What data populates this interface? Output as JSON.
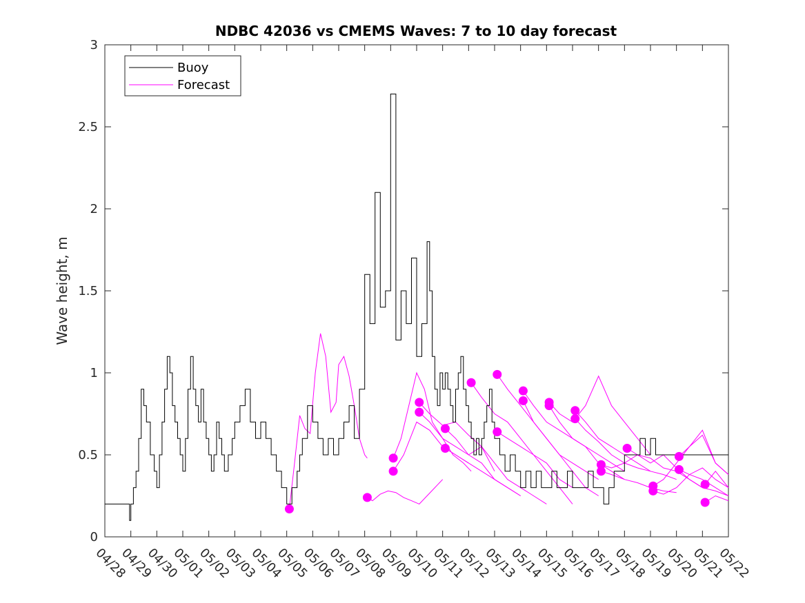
{
  "chart_data": {
    "type": "line",
    "title": "NDBC 42036 vs CMEMS Waves: 7 to 10 day forecast",
    "xlabel": "",
    "ylabel": "Wave height, m",
    "x_tick_labels": [
      "04/28",
      "04/29",
      "04/30",
      "05/01",
      "05/02",
      "05/03",
      "05/04",
      "05/05",
      "05/06",
      "05/07",
      "05/08",
      "05/09",
      "05/10",
      "05/11",
      "05/12",
      "05/13",
      "05/14",
      "05/15",
      "05/16",
      "05/17",
      "05/18",
      "05/19",
      "05/20",
      "05/21",
      "05/22"
    ],
    "y_ticks": [
      "0",
      "0.5",
      "1",
      "1.5",
      "2",
      "2.5",
      "3"
    ],
    "xlim_day_index": [
      0,
      24
    ],
    "ylim": [
      0,
      3
    ],
    "grid": false,
    "legend": {
      "placement": "top-left",
      "entries": [
        {
          "label": "Buoy",
          "color": "#000000"
        },
        {
          "label": "Forecast",
          "color": "#ff00ff"
        }
      ]
    },
    "series": [
      {
        "name": "Buoy",
        "color": "#000000",
        "style": "step",
        "x_day_index": [
          0,
          0.9,
          0.95,
          1.0,
          1.1,
          1.2,
          1.3,
          1.4,
          1.5,
          1.6,
          1.75,
          1.9,
          2.0,
          2.1,
          2.2,
          2.3,
          2.4,
          2.5,
          2.6,
          2.7,
          2.8,
          2.9,
          3.0,
          3.1,
          3.2,
          3.3,
          3.4,
          3.5,
          3.6,
          3.7,
          3.8,
          3.9,
          4.0,
          4.1,
          4.2,
          4.3,
          4.4,
          4.5,
          4.6,
          4.75,
          4.9,
          5.0,
          5.2,
          5.4,
          5.6,
          5.8,
          6.0,
          6.2,
          6.4,
          6.6,
          6.8,
          7.0,
          7.2,
          7.4,
          7.5,
          7.6,
          7.8,
          8.0,
          8.2,
          8.4,
          8.6,
          8.8,
          9.0,
          9.2,
          9.4,
          9.6,
          9.8,
          10.0,
          10.2,
          10.4,
          10.6,
          10.8,
          11.0,
          11.2,
          11.4,
          11.6,
          11.8,
          12.0,
          12.2,
          12.4,
          12.5,
          12.6,
          12.7,
          12.8,
          12.9,
          13.0,
          13.1,
          13.2,
          13.3,
          13.4,
          13.5,
          13.6,
          13.7,
          13.8,
          13.9,
          14.0,
          14.1,
          14.2,
          14.3,
          14.4,
          14.5,
          14.6,
          14.7,
          14.8,
          14.9,
          15.0,
          15.2,
          15.4,
          15.6,
          15.8,
          16.0,
          16.2,
          16.4,
          16.6,
          16.8,
          17.0,
          17.2,
          17.4,
          17.6,
          17.8,
          18.0,
          18.2,
          18.4,
          18.6,
          18.8,
          19.0,
          19.2,
          19.4,
          19.6,
          19.8,
          20.0,
          20.2,
          20.4,
          20.6,
          20.8,
          21.0,
          21.2,
          21.4,
          21.6,
          21.8,
          22.0,
          22.2,
          22.4,
          22.6,
          22.8,
          23.0,
          23.2,
          23.4,
          23.6,
          23.8,
          24.0
        ],
        "values": [
          0.2,
          0.2,
          0.1,
          0.2,
          0.3,
          0.4,
          0.6,
          0.9,
          0.8,
          0.7,
          0.5,
          0.4,
          0.3,
          0.5,
          0.7,
          0.9,
          1.1,
          1.0,
          0.8,
          0.7,
          0.6,
          0.5,
          0.4,
          0.6,
          0.9,
          1.1,
          0.9,
          0.8,
          0.7,
          0.9,
          0.7,
          0.6,
          0.5,
          0.4,
          0.5,
          0.7,
          0.6,
          0.5,
          0.4,
          0.5,
          0.6,
          0.7,
          0.8,
          0.9,
          0.7,
          0.6,
          0.7,
          0.6,
          0.5,
          0.4,
          0.3,
          0.2,
          0.3,
          0.4,
          0.5,
          0.6,
          0.8,
          0.7,
          0.6,
          0.5,
          0.6,
          0.5,
          0.6,
          0.7,
          0.8,
          0.6,
          0.9,
          1.6,
          1.3,
          2.1,
          1.4,
          1.5,
          2.7,
          1.2,
          1.5,
          1.3,
          1.7,
          1.1,
          1.3,
          1.8,
          1.5,
          1.1,
          0.9,
          0.8,
          1.0,
          0.9,
          1.0,
          0.9,
          0.8,
          0.7,
          0.9,
          1.0,
          1.1,
          0.9,
          0.8,
          0.7,
          0.6,
          0.5,
          0.6,
          0.5,
          0.6,
          0.7,
          0.8,
          0.9,
          0.7,
          0.6,
          0.5,
          0.4,
          0.5,
          0.4,
          0.3,
          0.4,
          0.3,
          0.4,
          0.3,
          0.3,
          0.4,
          0.3,
          0.3,
          0.4,
          0.3,
          0.3,
          0.3,
          0.4,
          0.3,
          0.3,
          0.2,
          0.3,
          0.4,
          0.4,
          0.5,
          0.5,
          0.5,
          0.6,
          0.5,
          0.6,
          0.5,
          0.5,
          0.5,
          0.5,
          0.5,
          0.5,
          0.5,
          0.5,
          0.5,
          0.5,
          0.5,
          0.5,
          0.5,
          0.5
        ]
      }
    ],
    "forecast_lines": [
      {
        "x_day_index": [
          7.1,
          7.3,
          7.5,
          7.7,
          7.9,
          8.1,
          8.3,
          8.5,
          8.7,
          8.9,
          9.0,
          9.2,
          9.4,
          9.6,
          9.8,
          10.0,
          10.1
        ],
        "values": [
          0.17,
          0.45,
          0.74,
          0.66,
          0.63,
          1.0,
          1.24,
          1.1,
          0.76,
          0.82,
          1.05,
          1.1,
          0.98,
          0.8,
          0.6,
          0.5,
          0.48
        ]
      },
      {
        "x_day_index": [
          10.1,
          10.3,
          10.6,
          10.9,
          11.2,
          11.5,
          11.8,
          12.1,
          12.4,
          12.7,
          13.0
        ],
        "values": [
          0.24,
          0.22,
          0.26,
          0.28,
          0.27,
          0.24,
          0.22,
          0.2,
          0.25,
          0.3,
          0.35
        ]
      },
      {
        "x_day_index": [
          11.1,
          11.4,
          11.7,
          12.0,
          12.3,
          12.6,
          13.0,
          13.4,
          13.8,
          14.1
        ],
        "values": [
          0.48,
          0.6,
          0.8,
          1.0,
          0.9,
          0.7,
          0.6,
          0.5,
          0.45,
          0.4
        ]
      },
      {
        "x_day_index": [
          11.1,
          11.5,
          12.0,
          12.5,
          13.0,
          13.5,
          14.0
        ],
        "values": [
          0.4,
          0.5,
          0.7,
          0.65,
          0.55,
          0.5,
          0.45
        ]
      },
      {
        "x_day_index": [
          12.1,
          12.5,
          13.0,
          13.5,
          14.0,
          14.5,
          15.0
        ],
        "values": [
          0.82,
          0.75,
          0.68,
          0.7,
          0.62,
          0.55,
          0.4
        ]
      },
      {
        "x_day_index": [
          12.1,
          12.5,
          13.0,
          13.5,
          14.0,
          14.5,
          15.0,
          15.5,
          16.0
        ],
        "values": [
          0.76,
          0.7,
          0.6,
          0.55,
          0.5,
          0.45,
          0.35,
          0.3,
          0.25
        ]
      },
      {
        "x_day_index": [
          13.1,
          13.5,
          14.0,
          14.5,
          15.0,
          15.5,
          16.0,
          16.5,
          17.0
        ],
        "values": [
          0.66,
          0.6,
          0.5,
          0.55,
          0.45,
          0.35,
          0.3,
          0.25,
          0.2
        ]
      },
      {
        "x_day_index": [
          13.1,
          13.5,
          14.0,
          14.5,
          15.0,
          15.5,
          16.0
        ],
        "values": [
          0.54,
          0.5,
          0.45,
          0.4,
          0.35,
          0.3,
          0.25
        ]
      },
      {
        "x_day_index": [
          14.1,
          14.5,
          15.0,
          15.5,
          16.0,
          16.5,
          17.0,
          17.5,
          18.0
        ],
        "values": [
          0.94,
          0.85,
          0.75,
          0.7,
          0.6,
          0.5,
          0.4,
          0.3,
          0.2
        ]
      },
      {
        "x_day_index": [
          15.1,
          15.5,
          16.0,
          16.5,
          17.0,
          17.5,
          18.0,
          18.5,
          19.0
        ],
        "values": [
          0.99,
          0.9,
          0.8,
          0.7,
          0.6,
          0.5,
          0.4,
          0.3,
          0.25
        ]
      },
      {
        "x_day_index": [
          15.1,
          15.5,
          16.0,
          16.5,
          17.0,
          17.5,
          18.0
        ],
        "values": [
          0.64,
          0.6,
          0.55,
          0.5,
          0.45,
          0.35,
          0.3
        ]
      },
      {
        "x_day_index": [
          16.1,
          16.5,
          17.0,
          17.5,
          18.0,
          18.5,
          19.0,
          19.5,
          20.0
        ],
        "values": [
          0.89,
          0.8,
          0.7,
          0.65,
          0.6,
          0.55,
          0.45,
          0.4,
          0.35
        ]
      },
      {
        "x_day_index": [
          16.1,
          16.5,
          17.0,
          17.5,
          18.0,
          18.5,
          19.0
        ],
        "values": [
          0.83,
          0.7,
          0.6,
          0.5,
          0.45,
          0.4,
          0.35
        ]
      },
      {
        "x_day_index": [
          17.1,
          17.5,
          18.0,
          18.5,
          19.0,
          19.5,
          20.0,
          20.5,
          21.0
        ],
        "values": [
          0.82,
          0.75,
          0.7,
          0.8,
          0.98,
          0.8,
          0.7,
          0.6,
          0.5
        ]
      },
      {
        "x_day_index": [
          17.1,
          17.5,
          18.0,
          18.5,
          19.0,
          19.5,
          20.0
        ],
        "values": [
          0.8,
          0.7,
          0.6,
          0.55,
          0.5,
          0.45,
          0.4
        ]
      },
      {
        "x_day_index": [
          18.1,
          18.5,
          19.0,
          19.5,
          20.0,
          20.5,
          21.0,
          21.5,
          22.0
        ],
        "values": [
          0.77,
          0.7,
          0.6,
          0.55,
          0.5,
          0.45,
          0.4,
          0.38,
          0.35
        ]
      },
      {
        "x_day_index": [
          18.1,
          18.5,
          19.0,
          19.5,
          20.0,
          20.5,
          21.0
        ],
        "values": [
          0.72,
          0.65,
          0.58,
          0.5,
          0.45,
          0.42,
          0.4
        ]
      },
      {
        "x_day_index": [
          19.1,
          19.5,
          20.0,
          20.5,
          21.0,
          21.5,
          22.0,
          22.5,
          23.0
        ],
        "values": [
          0.44,
          0.42,
          0.45,
          0.5,
          0.48,
          0.42,
          0.4,
          0.35,
          0.3
        ]
      },
      {
        "x_day_index": [
          19.1,
          19.5,
          20.0,
          20.5,
          21.0,
          21.5,
          22.0
        ],
        "values": [
          0.4,
          0.38,
          0.35,
          0.33,
          0.3,
          0.28,
          0.27
        ]
      },
      {
        "x_day_index": [
          20.1,
          20.5,
          21.0,
          21.5,
          22.0,
          22.5,
          23.0,
          23.5,
          24.0
        ],
        "values": [
          0.54,
          0.5,
          0.45,
          0.5,
          0.42,
          0.35,
          0.3,
          0.28,
          0.25
        ]
      },
      {
        "x_day_index": [
          21.1,
          21.5,
          22.0,
          22.5,
          23.0,
          23.5,
          24.0
        ],
        "values": [
          0.31,
          0.35,
          0.45,
          0.55,
          0.65,
          0.45,
          0.38
        ]
      },
      {
        "x_day_index": [
          21.1,
          21.5,
          22.0,
          22.5,
          23.0,
          23.5,
          24.0
        ],
        "values": [
          0.28,
          0.26,
          0.3,
          0.38,
          0.42,
          0.35,
          0.3
        ]
      },
      {
        "x_day_index": [
          22.1,
          22.5,
          23.0,
          23.5,
          24.0
        ],
        "values": [
          0.49,
          0.55,
          0.62,
          0.45,
          0.38
        ]
      },
      {
        "x_day_index": [
          22.1,
          22.5,
          23.0,
          23.5,
          24.0
        ],
        "values": [
          0.41,
          0.38,
          0.35,
          0.3,
          0.25
        ]
      },
      {
        "x_day_index": [
          23.1,
          23.5,
          24.0
        ],
        "values": [
          0.32,
          0.4,
          0.3
        ]
      },
      {
        "x_day_index": [
          23.1,
          23.5,
          24.0
        ],
        "values": [
          0.21,
          0.25,
          0.22
        ]
      }
    ],
    "forecast_start_points": {
      "x_day_index": [
        7.1,
        10.1,
        11.1,
        11.1,
        12.1,
        12.1,
        13.1,
        13.1,
        14.1,
        15.1,
        15.1,
        16.1,
        16.1,
        17.1,
        17.1,
        18.1,
        18.1,
        19.1,
        19.1,
        20.1,
        21.1,
        21.1,
        22.1,
        22.1,
        23.1,
        23.1
      ],
      "values": [
        0.17,
        0.24,
        0.48,
        0.4,
        0.82,
        0.76,
        0.66,
        0.54,
        0.94,
        0.99,
        0.64,
        0.89,
        0.83,
        0.82,
        0.8,
        0.77,
        0.72,
        0.44,
        0.4,
        0.54,
        0.31,
        0.28,
        0.49,
        0.41,
        0.32,
        0.21
      ]
    }
  }
}
